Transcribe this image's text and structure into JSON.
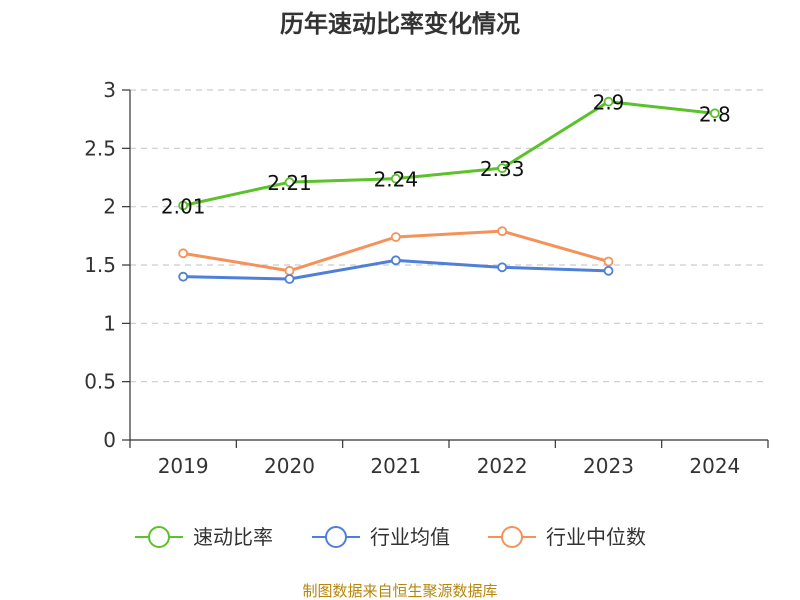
{
  "chart_data": {
    "type": "line",
    "title": "历年速动比率变化情况",
    "categories": [
      "2019",
      "2020",
      "2021",
      "2022",
      "2023",
      "2024"
    ],
    "ylim": [
      0,
      3
    ],
    "yticks": [
      "0",
      "0.5",
      "1",
      "1.5",
      "2",
      "2.5",
      "3"
    ],
    "ytick_values": [
      0,
      0.5,
      1,
      1.5,
      2,
      2.5,
      3
    ],
    "grid": true,
    "legend_position": "bottom",
    "series": [
      {
        "name": "速动比率",
        "color": "#5cc22b",
        "values": [
          2.01,
          2.21,
          2.24,
          2.33,
          2.9,
          2.8
        ],
        "labels": [
          "2.01",
          "2.21",
          "2.24",
          "2.33",
          "2.9",
          "2.8"
        ]
      },
      {
        "name": "行业均值",
        "color": "#4f7fd9",
        "values": [
          1.4,
          1.38,
          1.54,
          1.48,
          1.45,
          null
        ]
      },
      {
        "name": "行业中位数",
        "color": "#f5925a",
        "values": [
          1.6,
          1.45,
          1.74,
          1.79,
          1.53,
          null
        ]
      }
    ]
  },
  "source": "制图数据来自恒生聚源数据库"
}
